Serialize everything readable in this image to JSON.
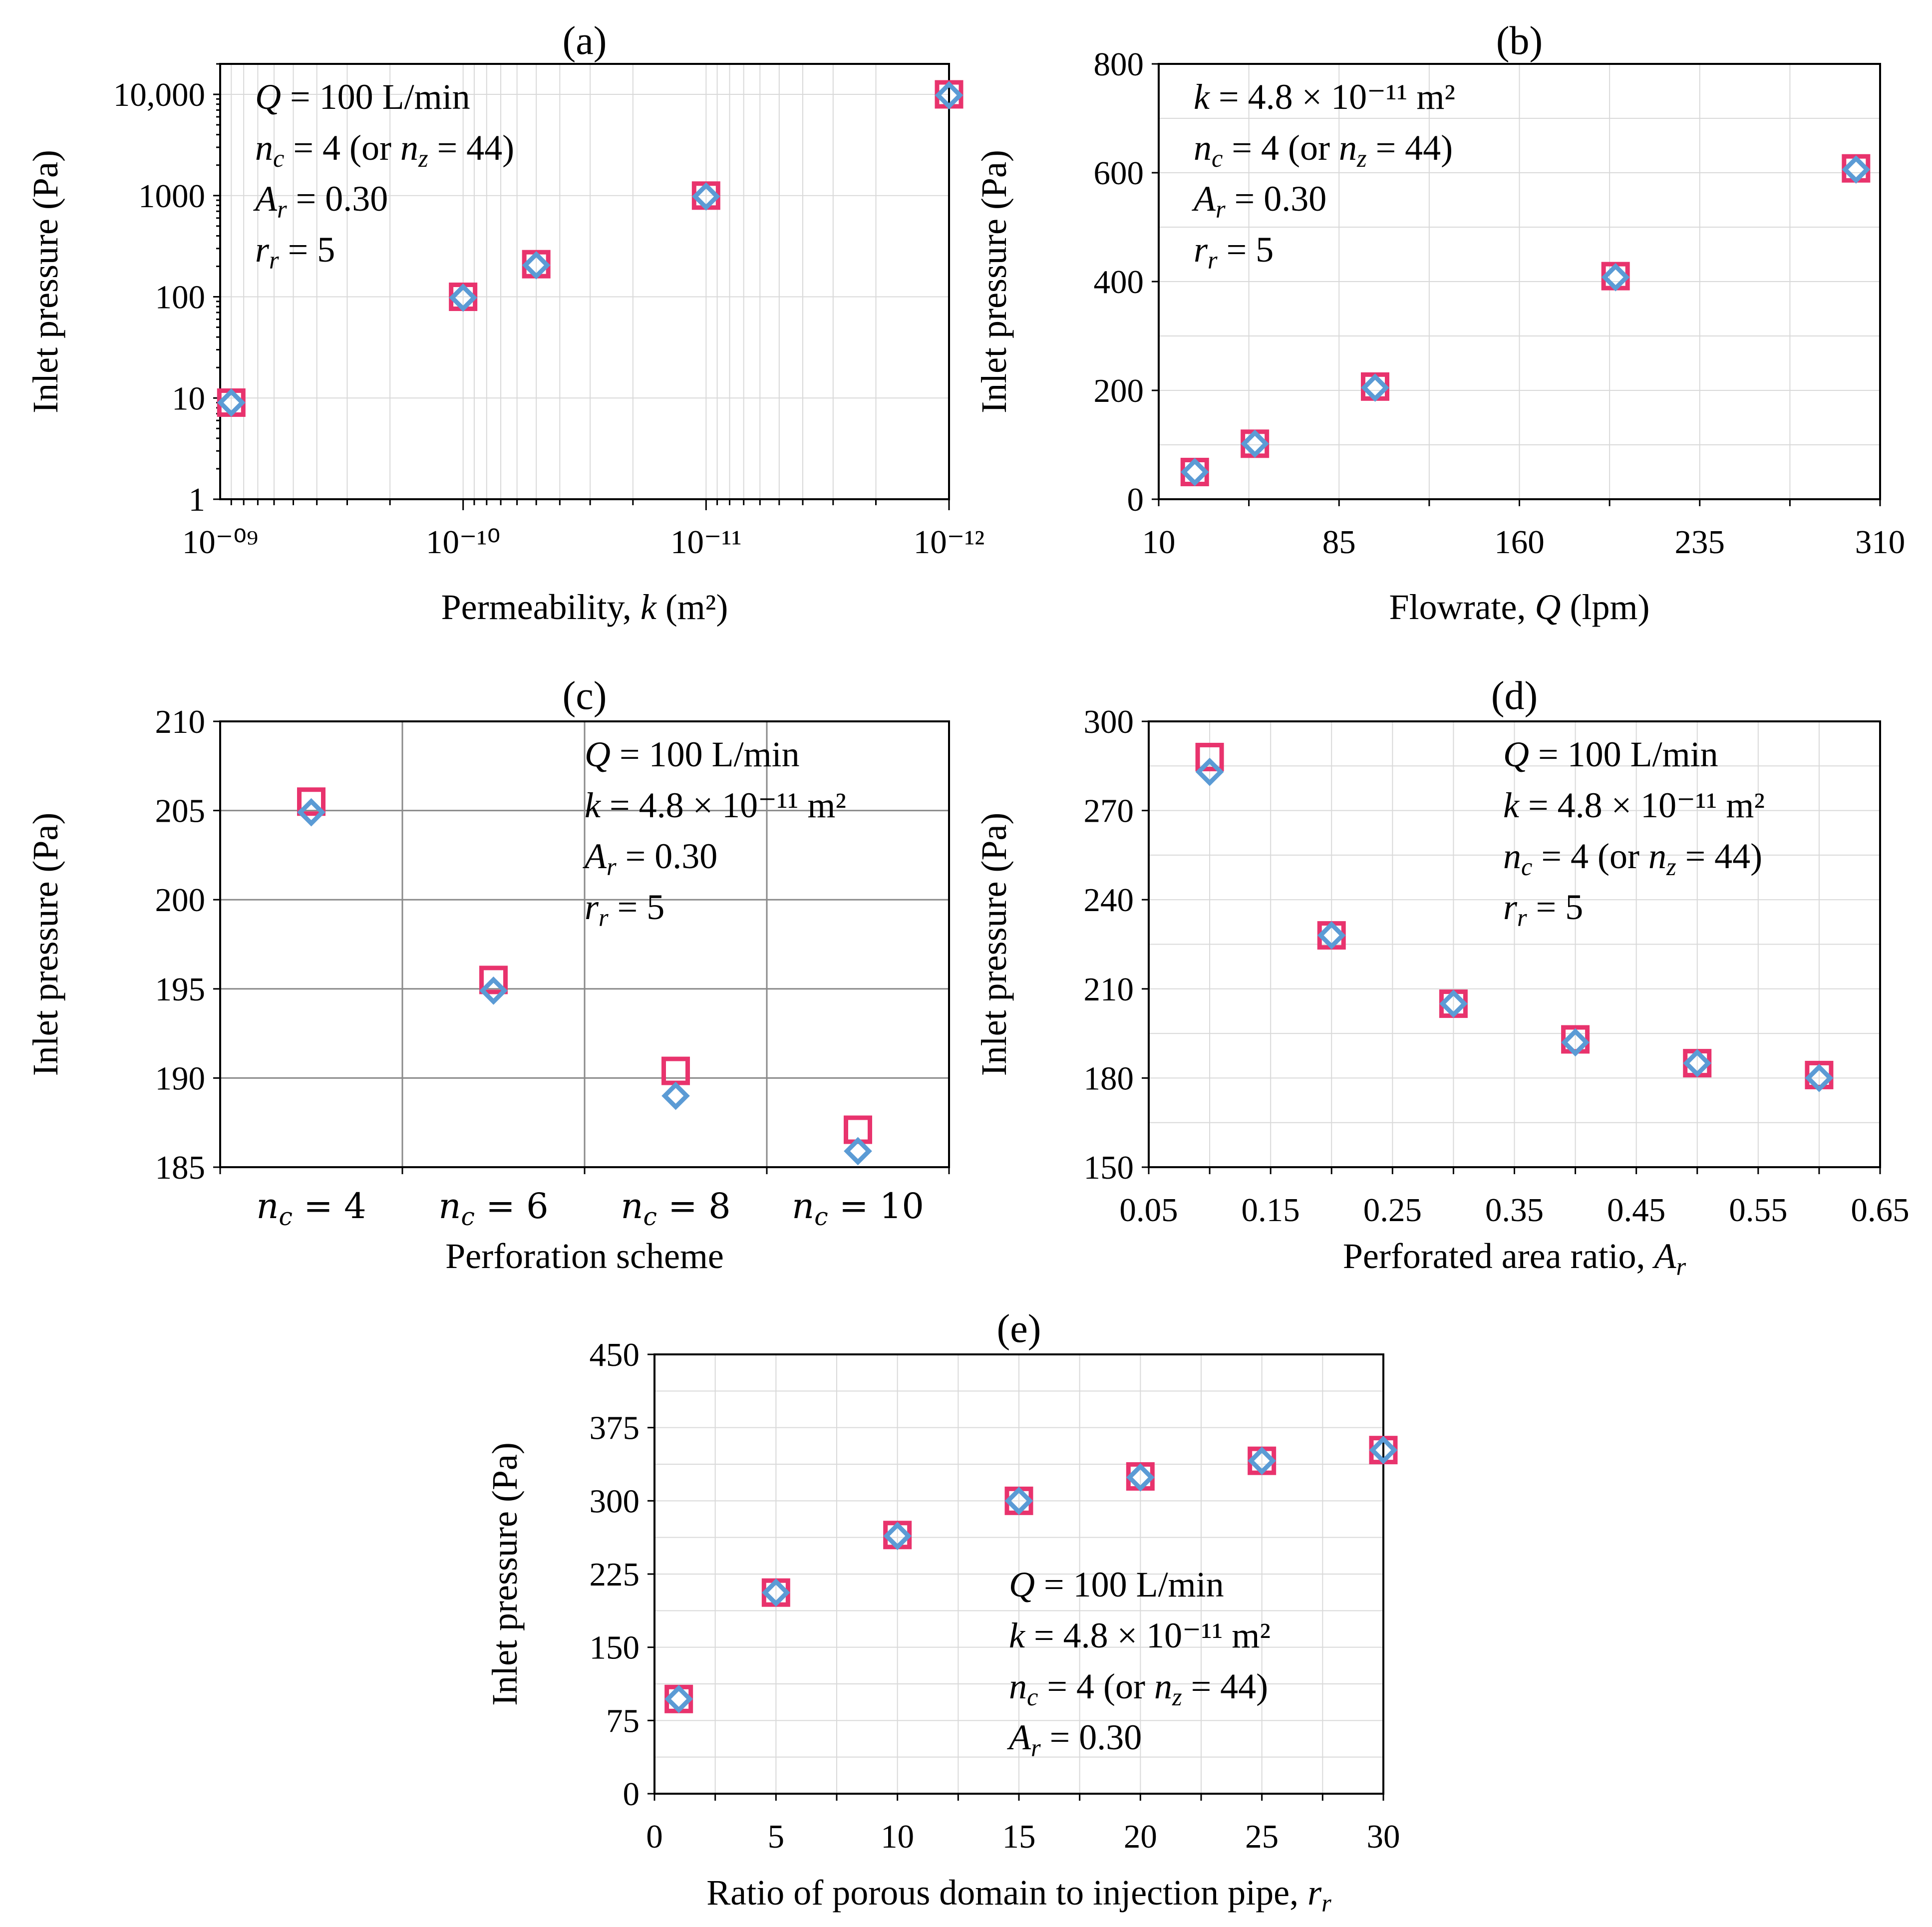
{
  "colors": {
    "square": "#e8336d",
    "diamond": "#5b9bd5"
  },
  "chart_data": [
    {
      "id": "a",
      "type": "scatter",
      "title": "(a)",
      "xlabel": "Permeability, k (m²)",
      "ylabel": "Inlet pressure (Pa)",
      "xscale": "log",
      "xreversed": true,
      "yscale": "log",
      "xlim": [
        1e-09,
        1e-12
      ],
      "ylim": [
        1,
        20000
      ],
      "xticks": [
        1e-09,
        1e-10,
        1e-11,
        1e-12
      ],
      "xtick_labels": [
        "10⁻⁰⁹",
        "10⁻¹⁰",
        "10⁻¹¹",
        "10⁻¹²"
      ],
      "yticks": [
        1,
        10,
        100,
        1000,
        10000
      ],
      "ytick_labels": [
        "1",
        "10",
        "100",
        "1000",
        "10,000"
      ],
      "series": [
        {
          "name": "square",
          "marker": "square",
          "x": [
            9e-10,
            1e-10,
            5e-11,
            1e-11,
            1e-12
          ],
          "y": [
            9,
            100,
            210,
            1000,
            10000
          ]
        },
        {
          "name": "diamond",
          "marker": "diamond",
          "x": [
            9e-10,
            1e-10,
            5e-11,
            1e-11,
            1e-12
          ],
          "y": [
            9,
            98,
            205,
            980,
            9800
          ]
        }
      ],
      "annotations": [
        "Q = 100 L/min",
        "n_c = 4 (or n_z = 44)",
        "A_r = 0.30",
        "r_r = 5"
      ]
    },
    {
      "id": "b",
      "type": "scatter",
      "title": "(b)",
      "xlabel": "Flowrate, Q (lpm)",
      "ylabel": "Inlet pressure (Pa)",
      "xlim": [
        10,
        310
      ],
      "ylim": [
        0,
        800
      ],
      "xticks": [
        10,
        85,
        160,
        235,
        310
      ],
      "yticks": [
        0,
        200,
        400,
        600,
        800
      ],
      "series": [
        {
          "name": "square",
          "marker": "square",
          "x": [
            25,
            50,
            100,
            200,
            300
          ],
          "y": [
            50,
            102,
            207,
            410,
            608
          ]
        },
        {
          "name": "diamond",
          "marker": "diamond",
          "x": [
            25,
            50,
            100,
            200,
            300
          ],
          "y": [
            50,
            102,
            205,
            408,
            606
          ]
        }
      ],
      "annotations": [
        "k = 4.8 × 10⁻¹¹ m²",
        "n_c = 4 (or n_z = 44)",
        "A_r = 0.30",
        "r_r = 5"
      ]
    },
    {
      "id": "c",
      "type": "scatter",
      "title": "(c)",
      "xlabel": "Perforation scheme",
      "ylabel": "Inlet pressure (Pa)",
      "categories": [
        "n_c = 4",
        "n_c = 6",
        "n_c = 8",
        "n_c = 10"
      ],
      "ylim": [
        185,
        210
      ],
      "yticks": [
        185,
        190,
        195,
        200,
        205,
        210
      ],
      "series": [
        {
          "name": "square",
          "marker": "square",
          "values": [
            205.5,
            195.5,
            190.4,
            187.1
          ]
        },
        {
          "name": "diamond",
          "marker": "diamond",
          "values": [
            204.9,
            194.9,
            189.0,
            185.9
          ]
        }
      ],
      "annotations": [
        "Q = 100 L/min",
        "k = 4.8 × 10⁻¹¹ m²",
        "A_r = 0.30",
        "r_r = 5"
      ]
    },
    {
      "id": "d",
      "type": "scatter",
      "title": "(d)",
      "xlabel": "Perforated area ratio, A_r",
      "ylabel": "Inlet pressure (Pa)",
      "xlim": [
        0.05,
        0.65
      ],
      "ylim": [
        150,
        300
      ],
      "xticks": [
        0.05,
        0.15,
        0.25,
        0.35,
        0.45,
        0.55,
        0.65
      ],
      "yticks": [
        150,
        180,
        210,
        240,
        270,
        300
      ],
      "series": [
        {
          "name": "square",
          "marker": "square",
          "x": [
            0.1,
            0.2,
            0.3,
            0.4,
            0.5,
            0.6
          ],
          "y": [
            288,
            228,
            205,
            193,
            185,
            181
          ]
        },
        {
          "name": "diamond",
          "marker": "diamond",
          "x": [
            0.1,
            0.2,
            0.3,
            0.4,
            0.5,
            0.6
          ],
          "y": [
            283,
            228,
            205,
            192,
            185,
            180
          ]
        }
      ],
      "annotations": [
        "Q = 100 L/min",
        "k = 4.8 × 10⁻¹¹ m²",
        "n_c = 4 (or n_z = 44)",
        "r_r = 5"
      ]
    },
    {
      "id": "e",
      "type": "scatter",
      "title": "(e)",
      "xlabel": "Ratio of porous domain to injection pipe, r_r",
      "ylabel": "Inlet pressure (Pa)",
      "xlim": [
        0,
        30
      ],
      "ylim": [
        0,
        450
      ],
      "xticks": [
        0,
        5,
        10,
        15,
        20,
        25,
        30
      ],
      "yticks": [
        0,
        75,
        150,
        225,
        300,
        375,
        450
      ],
      "series": [
        {
          "name": "square",
          "marker": "square",
          "x": [
            1,
            5,
            10,
            15,
            20,
            25,
            30
          ],
          "y": [
            97,
            206,
            265,
            300,
            325,
            341,
            352
          ]
        },
        {
          "name": "diamond",
          "marker": "diamond",
          "x": [
            1,
            5,
            10,
            15,
            20,
            25,
            30
          ],
          "y": [
            97,
            206,
            264,
            300,
            324,
            341,
            352
          ]
        }
      ],
      "annotations": [
        "Q = 100 L/min",
        "k = 4.8 × 10⁻¹¹ m²",
        "n_c = 4 (or n_z = 44)",
        "A_r = 0.30"
      ]
    }
  ]
}
